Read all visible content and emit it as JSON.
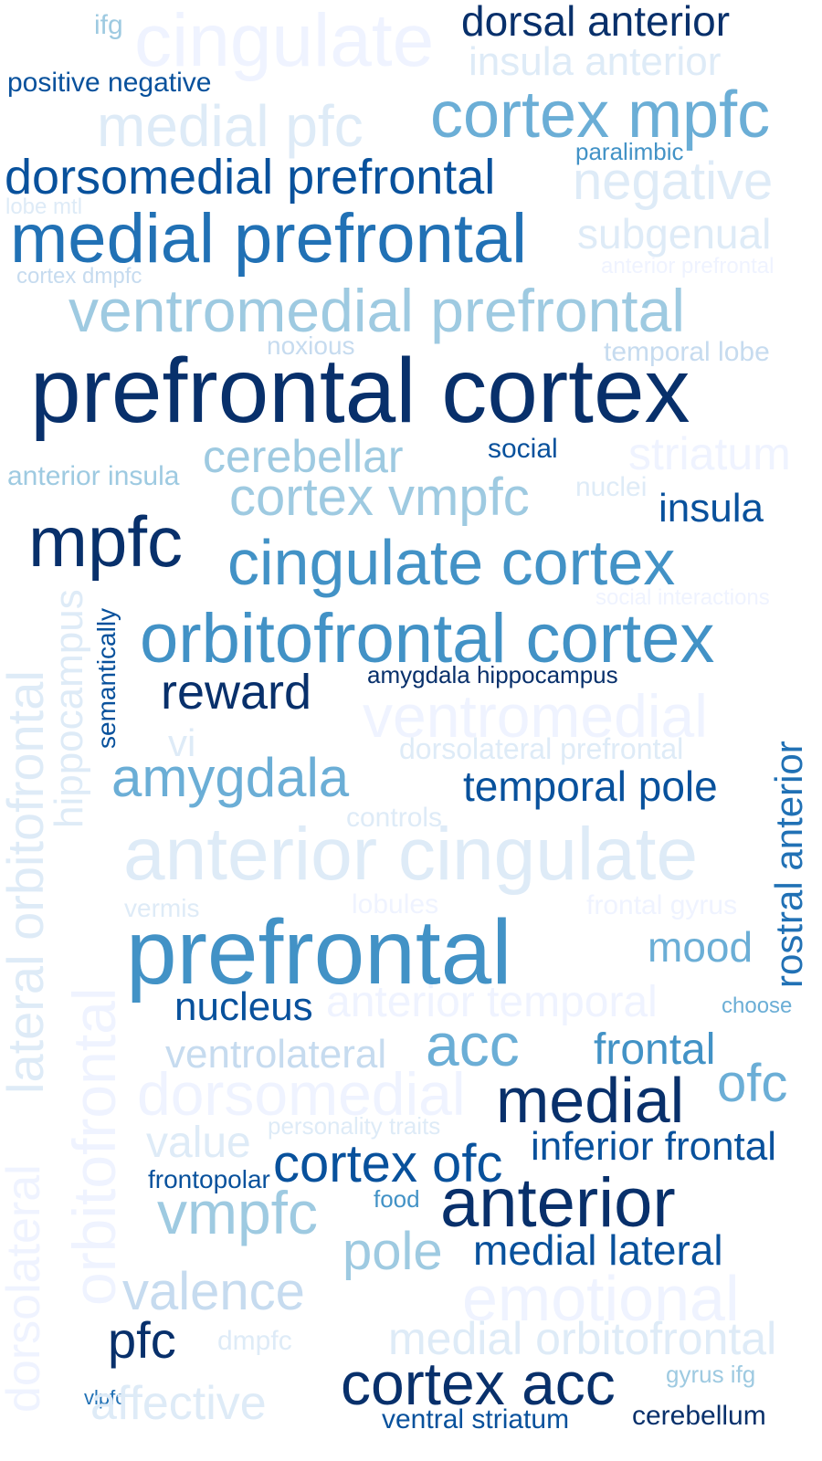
{
  "palette": {
    "c1": "#08306b",
    "c2": "#08519c",
    "c3": "#2171b5",
    "c4": "#4292c6",
    "c5": "#6baed6",
    "c6": "#9ecae1",
    "c7": "#c6dbef",
    "c8": "#deebf7",
    "c9": "#eff3ff"
  },
  "words": [
    {
      "text": "cingulate",
      "color": "c9"
    },
    {
      "text": "ifg",
      "color": "c6"
    },
    {
      "text": "dorsal anterior",
      "color": "c1"
    },
    {
      "text": "insula anterior",
      "color": "c8"
    },
    {
      "text": "positive negative",
      "color": "c2"
    },
    {
      "text": "medial pfc",
      "color": "c8"
    },
    {
      "text": "cortex mpfc",
      "color": "c5"
    },
    {
      "text": "paralimbic",
      "color": "c4"
    },
    {
      "text": "dorsomedial prefrontal",
      "color": "c2"
    },
    {
      "text": "negative",
      "color": "c8"
    },
    {
      "text": "lobe mtl",
      "color": "c8"
    },
    {
      "text": "medial prefrontal",
      "color": "c3"
    },
    {
      "text": "subgenual",
      "color": "c8"
    },
    {
      "text": "anterior prefrontal",
      "color": "c9"
    },
    {
      "text": "cortex dmpfc",
      "color": "c7"
    },
    {
      "text": "ventromedial prefrontal",
      "color": "c6"
    },
    {
      "text": "noxious",
      "color": "c7"
    },
    {
      "text": "temporal lobe",
      "color": "c7"
    },
    {
      "text": "prefrontal cortex",
      "color": "c1"
    },
    {
      "text": "cerebellar",
      "color": "c6"
    },
    {
      "text": "social",
      "color": "c2"
    },
    {
      "text": "striatum",
      "color": "c9"
    },
    {
      "text": "anterior insula",
      "color": "c6"
    },
    {
      "text": "cortex vmpfc",
      "color": "c6"
    },
    {
      "text": "nuclei",
      "color": "c8"
    },
    {
      "text": "insula",
      "color": "c2"
    },
    {
      "text": "mpfc",
      "color": "c1"
    },
    {
      "text": "cingulate cortex",
      "color": "c4"
    },
    {
      "text": "social interactions",
      "color": "c9"
    },
    {
      "text": "orbitofrontal cortex",
      "color": "c4"
    },
    {
      "text": "reward",
      "color": "c1"
    },
    {
      "text": "amygdala hippocampus",
      "color": "c1"
    },
    {
      "text": "ventromedial",
      "color": "c9"
    },
    {
      "text": "vi",
      "color": "c8"
    },
    {
      "text": "dorsolateral prefrontal",
      "color": "c8"
    },
    {
      "text": "amygdala",
      "color": "c5"
    },
    {
      "text": "temporal pole",
      "color": "c2"
    },
    {
      "text": "controls",
      "color": "c8"
    },
    {
      "text": "anterior cingulate",
      "color": "c8"
    },
    {
      "text": "vermis",
      "color": "c8"
    },
    {
      "text": "lobules",
      "color": "c9"
    },
    {
      "text": "frontal gyrus",
      "color": "c9"
    },
    {
      "text": "prefrontal",
      "color": "c4"
    },
    {
      "text": "mood",
      "color": "c5"
    },
    {
      "text": "nucleus",
      "color": "c2"
    },
    {
      "text": "anterior temporal",
      "color": "c9"
    },
    {
      "text": "choose",
      "color": "c5"
    },
    {
      "text": "ventrolateral",
      "color": "c7"
    },
    {
      "text": "acc",
      "color": "c5"
    },
    {
      "text": "frontal",
      "color": "c4"
    },
    {
      "text": "ofc",
      "color": "c5"
    },
    {
      "text": "dorsomedial",
      "color": "c9"
    },
    {
      "text": "medial",
      "color": "c1"
    },
    {
      "text": "personality traits",
      "color": "c8"
    },
    {
      "text": "value",
      "color": "c8"
    },
    {
      "text": "inferior frontal",
      "color": "c2"
    },
    {
      "text": "cortex ofc",
      "color": "c2"
    },
    {
      "text": "frontopolar",
      "color": "c2"
    },
    {
      "text": "food",
      "color": "c4"
    },
    {
      "text": "anterior",
      "color": "c1"
    },
    {
      "text": "vmpfc",
      "color": "c6"
    },
    {
      "text": "pole",
      "color": "c6"
    },
    {
      "text": "medial lateral",
      "color": "c2"
    },
    {
      "text": "valence",
      "color": "c7"
    },
    {
      "text": "emotional",
      "color": "c9"
    },
    {
      "text": "pfc",
      "color": "c1"
    },
    {
      "text": "dmpfc",
      "color": "c8"
    },
    {
      "text": "medial orbitofrontal",
      "color": "c8"
    },
    {
      "text": "vlpfc",
      "color": "c3"
    },
    {
      "text": "gyrus ifg",
      "color": "c6"
    },
    {
      "text": "cortex acc",
      "color": "c1"
    },
    {
      "text": "affective",
      "color": "c8"
    },
    {
      "text": "ventral striatum",
      "color": "c2"
    },
    {
      "text": "cerebellum",
      "color": "c1"
    },
    {
      "text": "semantically",
      "color": "c2"
    },
    {
      "text": "hippocampus",
      "color": "c8"
    },
    {
      "text": "lateral orbitofrontal",
      "color": "c8"
    },
    {
      "text": "orbitofrontal",
      "color": "c9"
    },
    {
      "text": "rostral anterior",
      "color": "c3"
    },
    {
      "text": "dorsolateral",
      "color": "c9"
    }
  ]
}
